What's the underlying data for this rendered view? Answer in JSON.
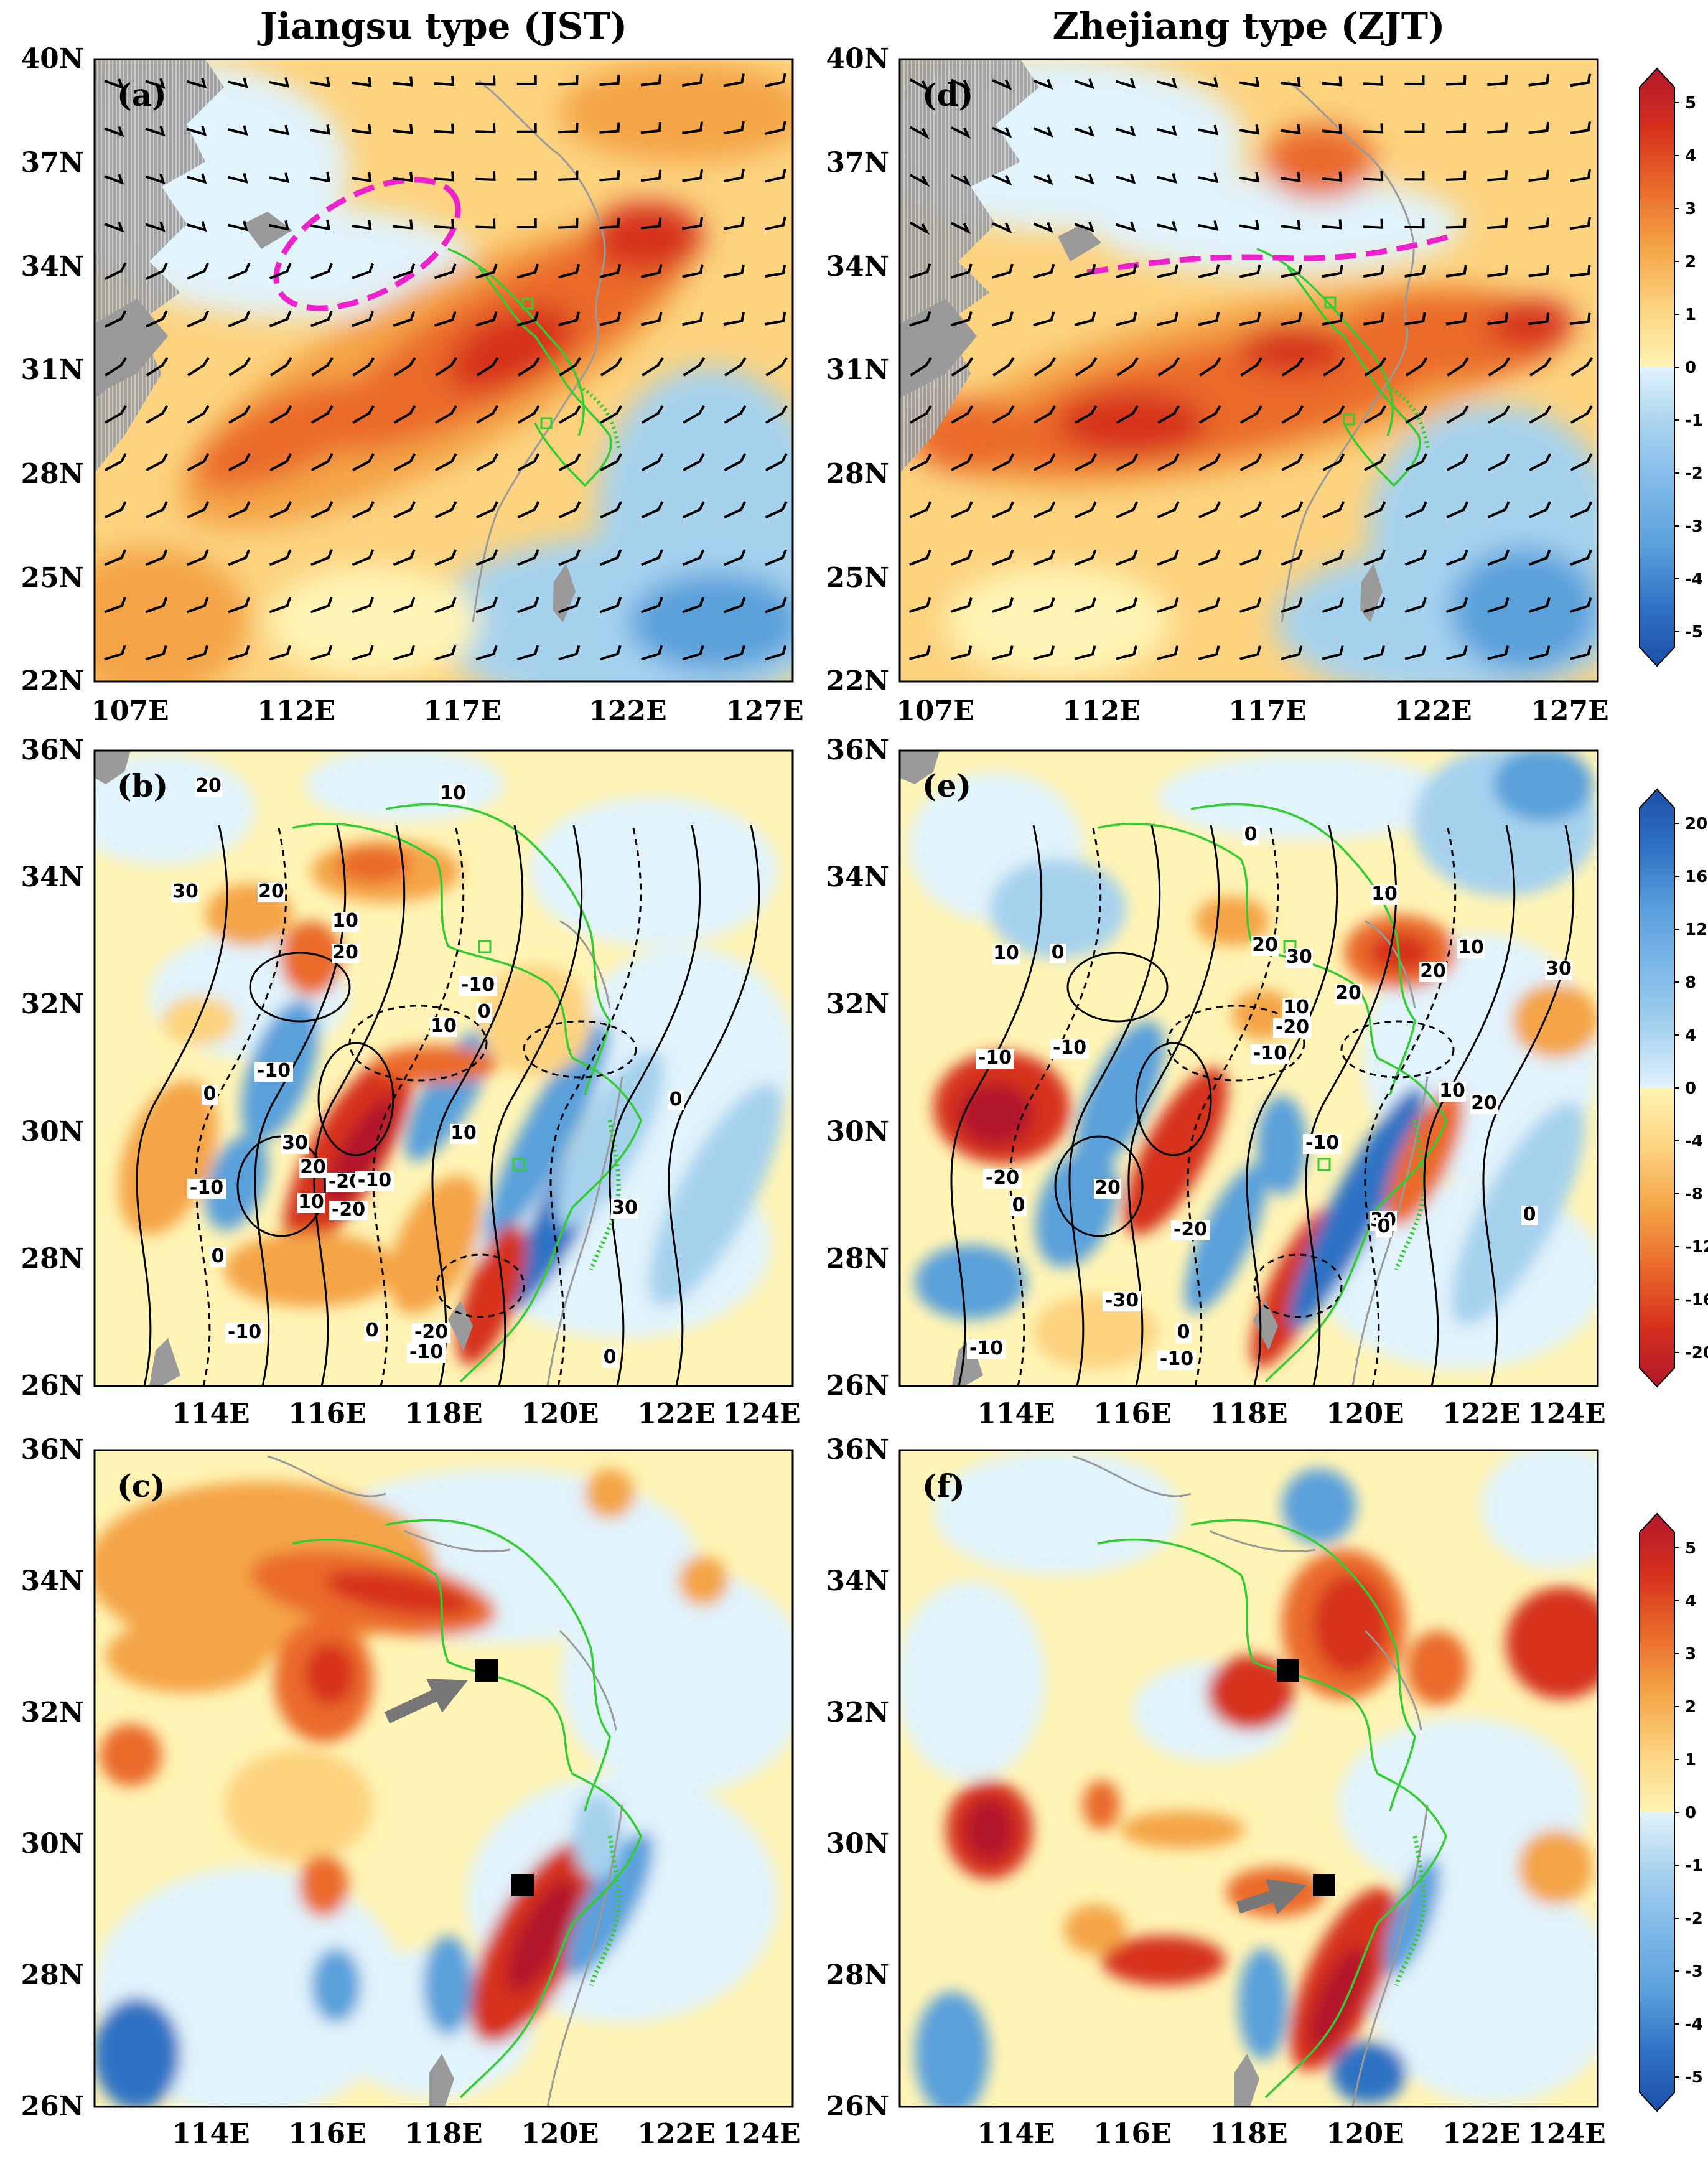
{
  "titles": {
    "left": "Jiangsu type (JST)",
    "right": "Zhejiang type (ZJT)"
  },
  "panel_labels": [
    "(a)",
    "(b)",
    "(c)",
    "(d)",
    "(e)",
    "(f)"
  ],
  "row1_axes": {
    "lat_ticks": [
      "40N",
      "37N",
      "34N",
      "31N",
      "28N",
      "25N",
      "22N"
    ],
    "lon_ticks": [
      "107E",
      "112E",
      "117E",
      "122E",
      "127E"
    ]
  },
  "row23_axes": {
    "lat_ticks": [
      "36N",
      "34N",
      "32N",
      "30N",
      "28N",
      "26N"
    ],
    "lon_ticks": [
      "114E",
      "116E",
      "118E",
      "120E",
      "122E",
      "124E"
    ]
  },
  "colorbars": [
    {
      "id": "cb1",
      "labels": [
        "5",
        "4",
        "3",
        "2",
        "1",
        "0",
        "-1",
        "-2",
        "-3",
        "-4",
        "-5"
      ]
    },
    {
      "id": "cb2",
      "labels": [
        "20",
        "16",
        "12",
        "8",
        "4",
        "0",
        "-4",
        "-8",
        "-12",
        "-16",
        "-20"
      ]
    },
    {
      "id": "cb3",
      "labels": [
        "5",
        "4",
        "3",
        "2",
        "1",
        "0",
        "-1",
        "-2",
        "-3",
        "-4",
        "-5"
      ]
    }
  ],
  "contour_labels": {
    "b": [
      "20",
      "30",
      "20",
      "10",
      "20",
      "-10",
      "0",
      "-10",
      "0",
      "30",
      "-10",
      "-20",
      "10",
      "-10",
      "20",
      "10",
      "-20",
      "0",
      "-10",
      "0",
      "-20",
      "-10",
      "0",
      "30",
      "10",
      "0",
      "10"
    ],
    "e": [
      "0",
      "10",
      "20",
      "20",
      "10",
      "30",
      "0",
      "10",
      "30",
      "20",
      "10",
      "-20",
      "-10",
      "-10",
      "-10",
      "-20",
      "20",
      "0",
      "-10",
      "10",
      "20",
      "30",
      "-20",
      "0",
      "-30",
      "0",
      "-10",
      "-10",
      "0"
    ]
  },
  "palette": {
    "dark_red": "#b2182b",
    "red": "#d6301d",
    "orange_red": "#ea6a2a",
    "orange": "#f4a447",
    "light_orange": "#fcd37f",
    "pale_yellow": "#fff4b5",
    "pale_blue": "#e1f3fb",
    "light_blue": "#a6d2ee",
    "blue": "#5aa0db",
    "mid_blue": "#2f72c4",
    "dark_blue": "#1c50a8",
    "gray_terrain": "#9a9a9a",
    "coast": "#9a9a9a",
    "province_border": "#33cc33",
    "highlight_ellipse": "#ee22cc"
  }
}
